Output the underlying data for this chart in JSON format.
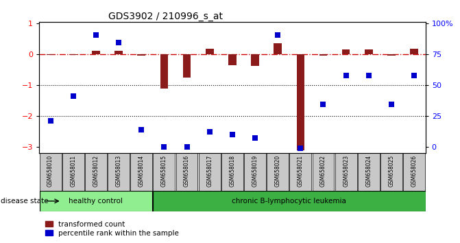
{
  "title": "GDS3902 / 210996_s_at",
  "samples": [
    "GSM658010",
    "GSM658011",
    "GSM658012",
    "GSM658013",
    "GSM658014",
    "GSM658015",
    "GSM658016",
    "GSM658017",
    "GSM658018",
    "GSM658019",
    "GSM658020",
    "GSM658021",
    "GSM658022",
    "GSM658023",
    "GSM658024",
    "GSM658025",
    "GSM658026"
  ],
  "red_values": [
    -0.02,
    -0.02,
    0.12,
    0.12,
    -0.05,
    -1.1,
    -0.75,
    0.17,
    -0.35,
    -0.38,
    0.35,
    -3.1,
    -0.05,
    0.15,
    0.15,
    -0.05,
    0.17
  ],
  "blue_values": [
    -2.15,
    -1.35,
    0.62,
    0.38,
    -2.45,
    -3.0,
    -3.0,
    -2.5,
    -2.6,
    -2.72,
    0.62,
    -3.05,
    -1.62,
    -0.68,
    -0.68,
    -1.62,
    -0.68
  ],
  "ylim": [
    -3.2,
    1.05
  ],
  "yticks_left": [
    -3,
    -2,
    -1,
    0,
    1
  ],
  "yticks_right": [
    0,
    25,
    50,
    75,
    100
  ],
  "right_tick_y": [
    -3.0,
    -2.0,
    -1.0,
    0.0,
    1.0
  ],
  "healthy_count": 5,
  "healthy_label": "healthy control",
  "disease_label": "chronic B-lymphocytic leukemia",
  "disease_state_label": "disease state",
  "legend_red": "transformed count",
  "legend_blue": "percentile rank within the sample",
  "bar_color_red": "#8B1A1A",
  "marker_color_blue": "#0000CC",
  "hline_color": "#CC0000",
  "dotline_color": "#000000",
  "healthy_bg": "#90EE90",
  "disease_bg": "#3CB043",
  "sample_bg": "#C8C8C8",
  "bar_width": 0.5
}
